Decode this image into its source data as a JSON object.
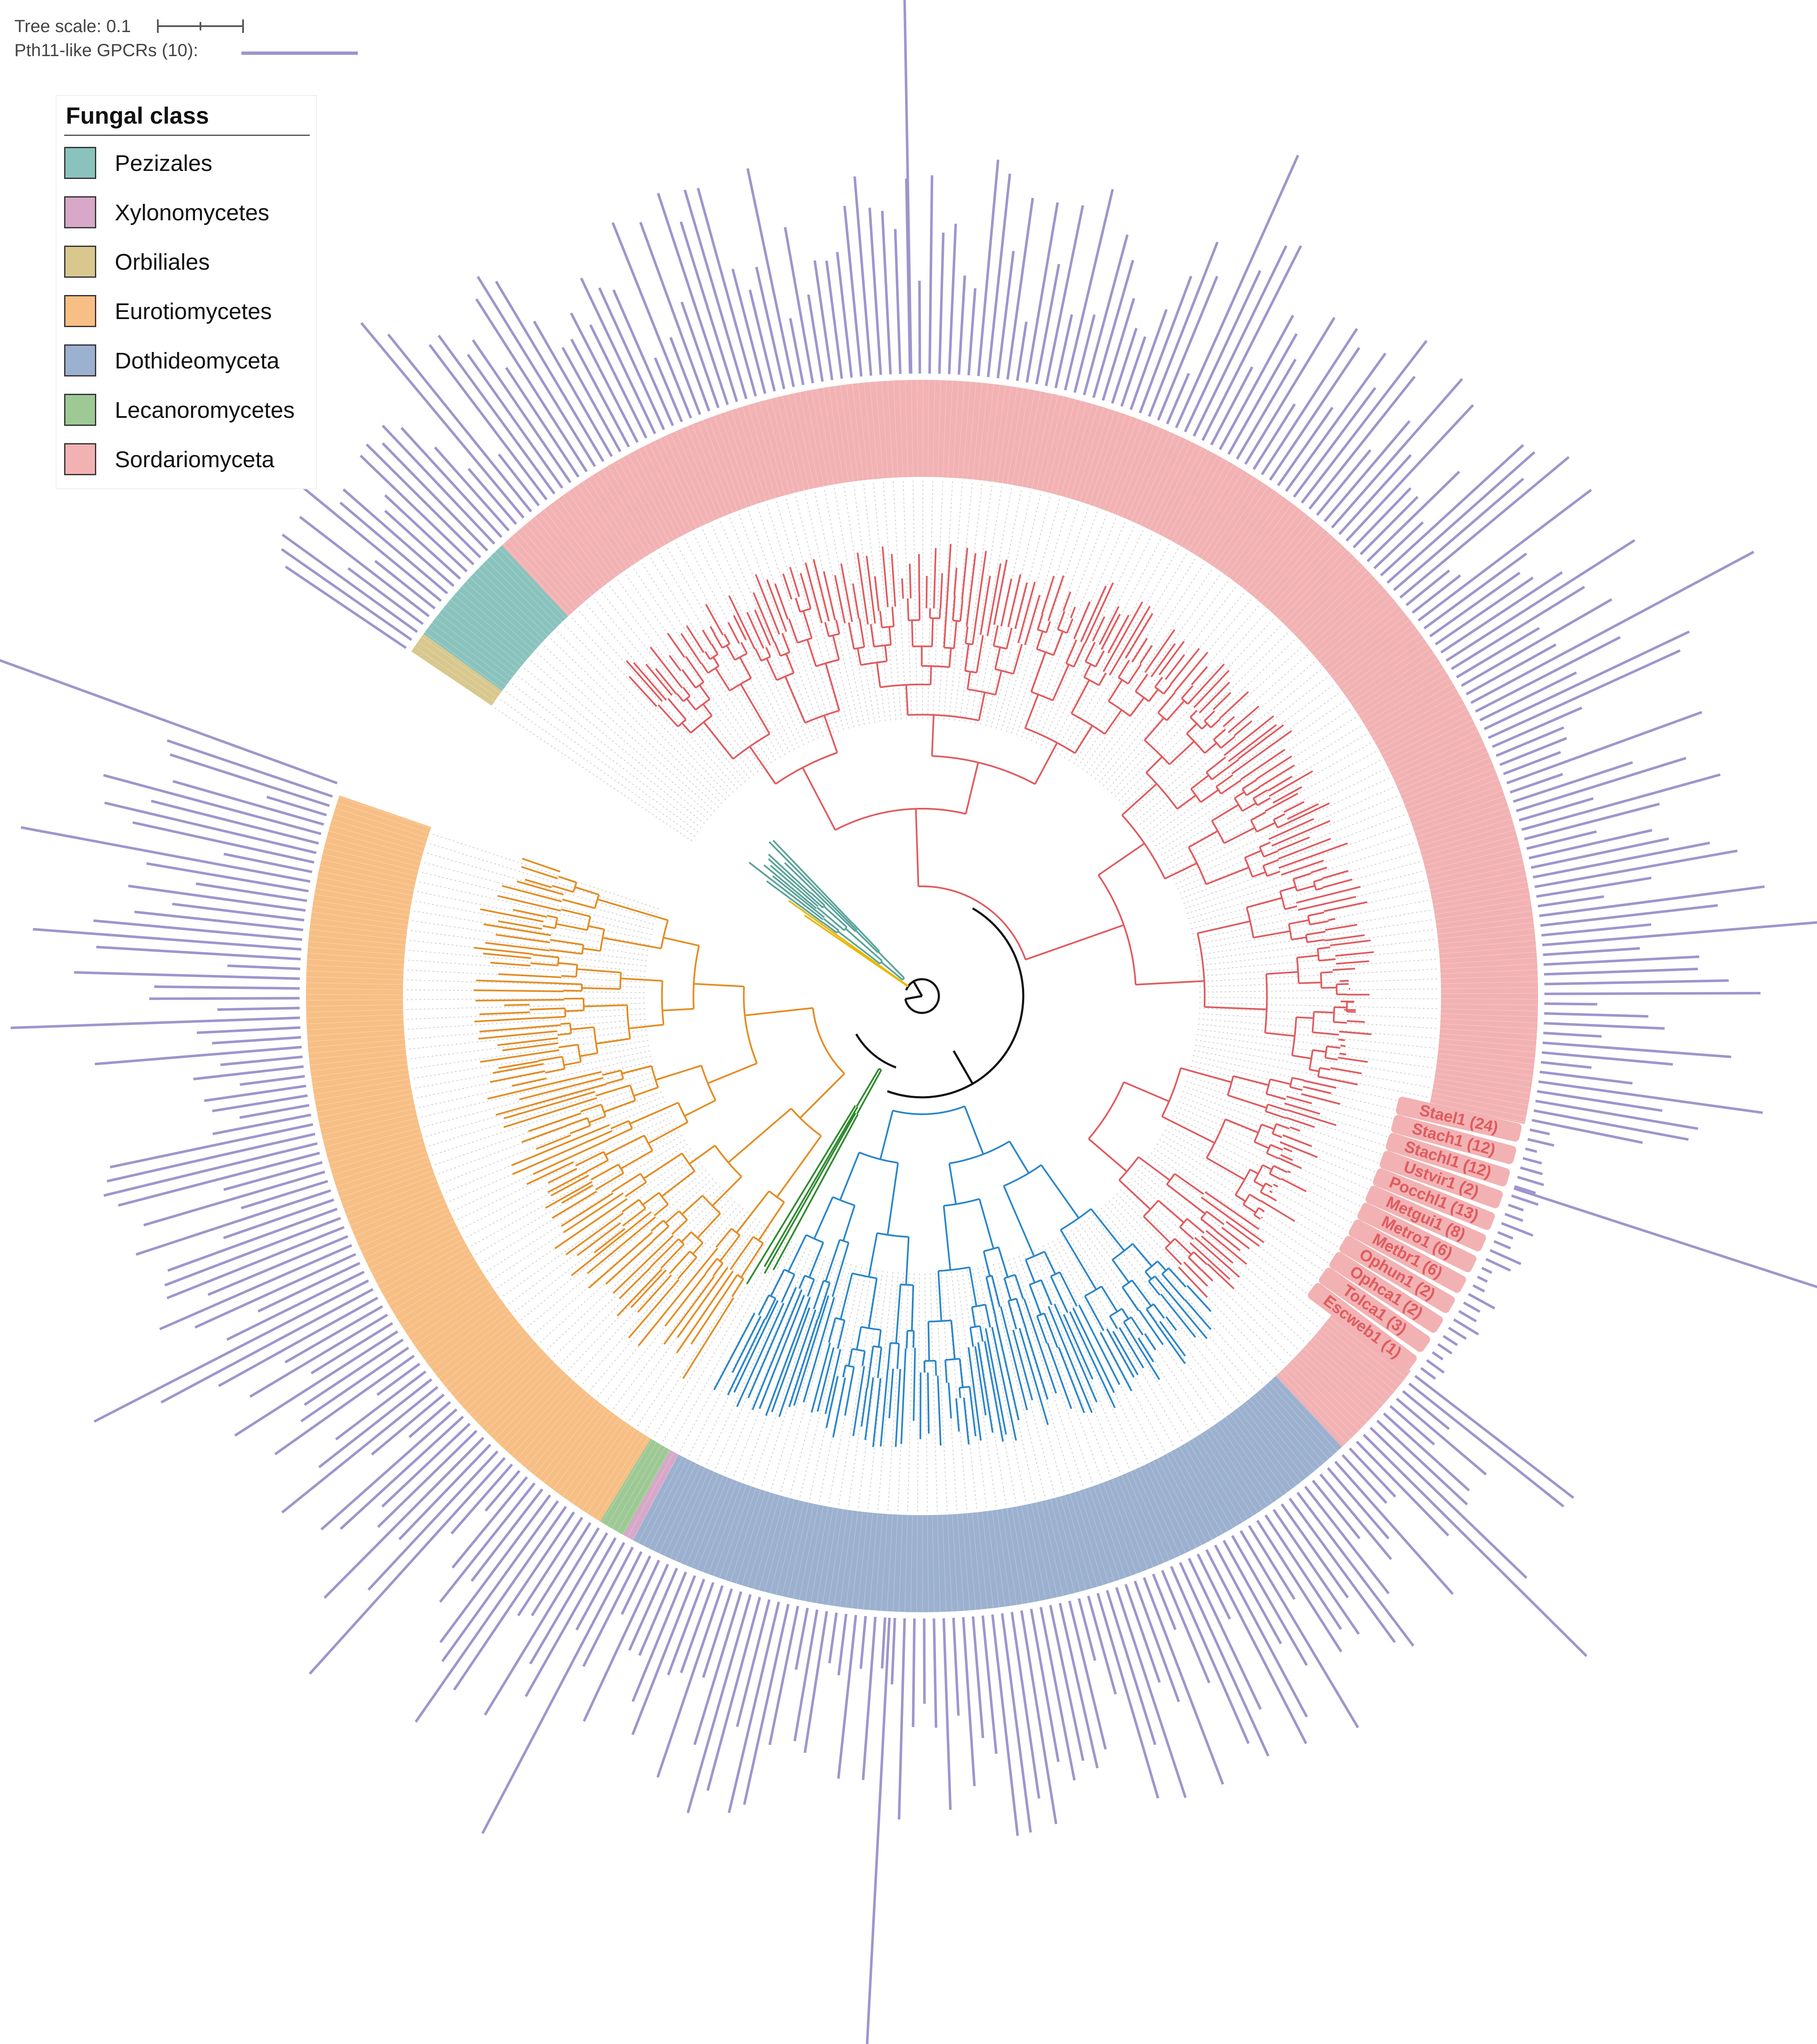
{
  "header": {
    "tree_scale_label": "Tree scale: 0.1",
    "gpcr_label": "Pth11-like GPCRs (10):",
    "gpcr_color": "#9f95cc"
  },
  "legend": {
    "title": "Fungal class",
    "items": [
      {
        "label": "Pezizales",
        "color": "#8ac3bd"
      },
      {
        "label": "Xylonomycetes",
        "color": "#d8a8c8"
      },
      {
        "label": "Orbiliales",
        "color": "#d9c88e"
      },
      {
        "label": "Eurotiomycetes",
        "color": "#f7bf85"
      },
      {
        "label": "Dothideomyceta",
        "color": "#9cb1cf"
      },
      {
        "label": "Lecanoromycetes",
        "color": "#9ec995"
      },
      {
        "label": "Sordariomyceta",
        "color": "#f2b2b3"
      }
    ]
  },
  "clade_colors": {
    "Sordariomyceta": "#e05b5f",
    "Dothideomyceta": "#2a86c9",
    "Eurotiomycetes": "#e48c22",
    "Lecanoromycetes": "#2f8a2f",
    "Pezizales": "#5aa39a",
    "Orbiliales": "#e8b800",
    "root": "#111111"
  },
  "highlighted_taxa": [
    "Stael1 (24)",
    "Stach1 (12)",
    "Stachl1 (12)",
    "Ustvir1 (2)",
    "Pocchl1 (13)",
    "Metgui1 (8)",
    "Metro1 (6)",
    "Metbr1 (6)",
    "Ophun1 (2)",
    "Ophca1 (2)",
    "Tolca1 (3)",
    "Escweb1 (1)"
  ]
}
